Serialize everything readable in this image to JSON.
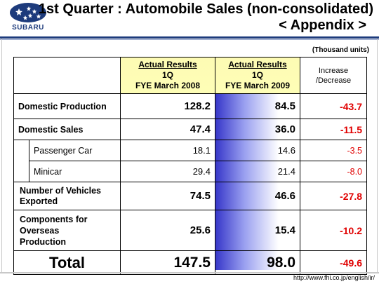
{
  "header": {
    "brand_name": "SUBARU",
    "title_line1": "1st Quarter : Automobile Sales (non-consolidated)",
    "title_line2": "< Appendix >"
  },
  "colors": {
    "brand_blue": "#1d3b7c",
    "header_yellow": "#fefeb6",
    "highlight_blue": "#3434c8",
    "negative_red": "#e00000"
  },
  "table": {
    "units_note": "(Thousand units)",
    "columns": [
      {
        "line1": "Actual Results",
        "line2": "1Q",
        "line3": "FYE March 2008"
      },
      {
        "line1": "Actual Results",
        "line2": "1Q",
        "line3": "FYE March 2009"
      },
      {
        "line1": "Increase",
        "line2": "/Decrease"
      }
    ],
    "rows": [
      {
        "label": "Domestic Production",
        "fy2008": "128.2",
        "fy2009": "84.5",
        "change": "-43.7"
      },
      {
        "label": "Domestic Sales",
        "fy2008": "47.4",
        "fy2009": "36.0",
        "change": "-11.5"
      },
      {
        "label": "Passenger Car",
        "fy2008": "18.1",
        "fy2009": "14.6",
        "change": "-3.5"
      },
      {
        "label": "Minicar",
        "fy2008": "29.4",
        "fy2009": "21.4",
        "change": "-8.0"
      },
      {
        "label_line1": "Number of Vehicles",
        "label_line2": "Exported",
        "fy2008": "74.5",
        "fy2009": "46.6",
        "change": "-27.8"
      },
      {
        "label_line1": "Components for",
        "label_line2": "Overseas",
        "label_line3": "Production",
        "fy2008": "25.6",
        "fy2009": "15.4",
        "change": "-10.2"
      },
      {
        "label": "Total",
        "fy2008": "147.5",
        "fy2009": "98.0",
        "change": "-49.6"
      }
    ]
  },
  "footer": {
    "url": "http://www.fhi.co.jp/english/ir/"
  }
}
